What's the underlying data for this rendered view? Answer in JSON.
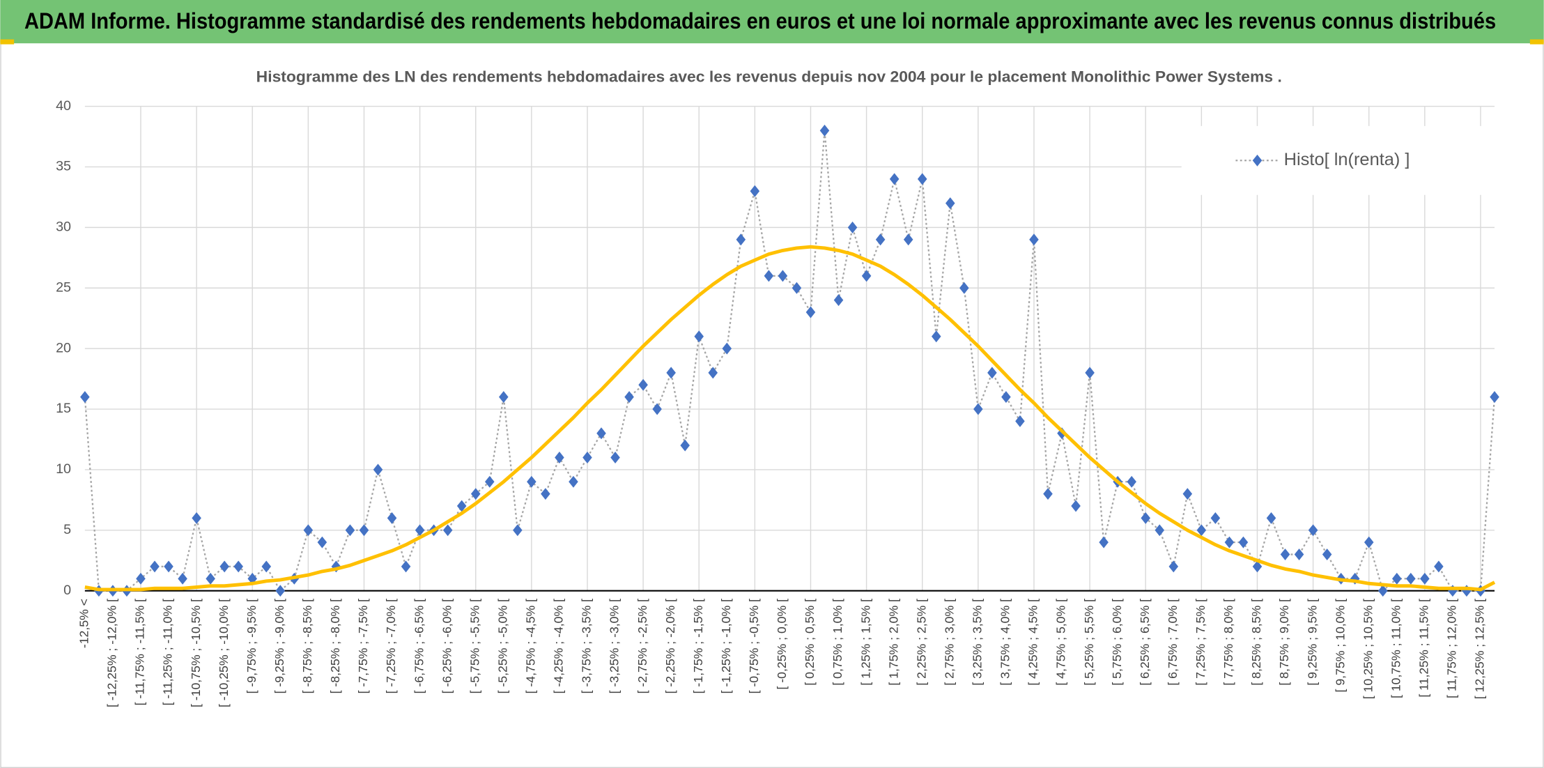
{
  "chart_data": {
    "type": "line",
    "title": "ADAM Informe. Histogramme standardisé des rendements hebdomadaires en euros et une loi normale approximante avec les revenus connus distribués",
    "subtitle": "Histogramme des LN des rendements hebdomadaires avec les revenus depuis nov 2004 pour le placement Monolithic Power Systems .",
    "categories": [
      "-12,5% <",
      null,
      "[ -12,25% ; -12,0% [",
      null,
      "[ -11,75% ; -11,5% [",
      null,
      "[ -11,25% ; -11,0% [",
      null,
      "[ -10,75% ; -10,5% [",
      null,
      "[ -10,25% ; -10,0% [",
      null,
      "[ -9,75% ; -9,5% [",
      null,
      "[ -9,25% ; -9,0% [",
      null,
      "[ -8,75% ; -8,5% [",
      null,
      "[ -8,25% ; -8,0% [",
      null,
      "[ -7,75% ; -7,5% [",
      null,
      "[ -7,25% ; -7,0% [",
      null,
      "[ -6,75% ; -6,5% [",
      null,
      "[ -6,25% ; -6,0% [",
      null,
      "[ -5,75% ; -5,5% [",
      null,
      "[ -5,25% ; -5,0% [",
      null,
      "[ -4,75% ; -4,5% [",
      null,
      "[ -4,25% ; -4,0% [",
      null,
      "[ -3,75% ; -3,5% [",
      null,
      "[ -3,25% ; -3,0% [",
      null,
      "[ -2,75% ; -2,5% [",
      null,
      "[ -2,25% ; -2,0% [",
      null,
      "[ -1,75% ; -1,5% [",
      null,
      "[ -1,25% ; -1,0% [",
      null,
      "[ -0,75% ; -0,5% [",
      null,
      "[ -0,25% ; 0,0% [",
      null,
      "[ 0,25% ; 0,5% [",
      null,
      "[ 0,75% ; 1,0% [",
      null,
      "[ 1,25% ; 1,5% [",
      null,
      "[ 1,75% ; 2,0% [",
      null,
      "[ 2,25% ; 2,5% [",
      null,
      "[ 2,75% ; 3,0% [",
      null,
      "[ 3,25% ; 3,5% [",
      null,
      "[ 3,75% ; 4,0% [",
      null,
      "[ 4,25% ; 4,5% [",
      null,
      "[ 4,75% ; 5,0% [",
      null,
      "[ 5,25% ; 5,5% [",
      null,
      "[ 5,75% ; 6,0% [",
      null,
      "[ 6,25% ; 6,5% [",
      null,
      "[ 6,75% ; 7,0% [",
      null,
      "[ 7,25% ; 7,5% [",
      null,
      "[ 7,75% ; 8,0% [",
      null,
      "[ 8,25% ; 8,5% [",
      null,
      "[ 8,75% ; 9,0% [",
      null,
      "[ 9,25% ; 9,5% [",
      null,
      "[ 9,75% ; 10,0% [",
      null,
      "[ 10,25% ; 10,5% [",
      null,
      "[ 10,75% ; 11,0% [",
      null,
      "[ 11,25% ; 11,5% [",
      null,
      "[ 11,75% ; 12,0% [",
      null,
      "[ 12,25% ; 12,5% [",
      null
    ],
    "series": [
      {
        "name": "Histo[ ln(renta) ]",
        "color": "#4472c4",
        "line_color": "#a5a5a5",
        "values": [
          16,
          0,
          0,
          0,
          1,
          2,
          2,
          1,
          6,
          1,
          2,
          2,
          1,
          2,
          0,
          1,
          5,
          4,
          2,
          5,
          5,
          10,
          6,
          2,
          5,
          5,
          5,
          7,
          8,
          9,
          16,
          5,
          9,
          8,
          11,
          9,
          11,
          13,
          11,
          16,
          17,
          15,
          18,
          12,
          21,
          18,
          20,
          29,
          33,
          26,
          26,
          25,
          23,
          38,
          24,
          30,
          26,
          29,
          34,
          29,
          34,
          21,
          32,
          25,
          15,
          18,
          16,
          14,
          29,
          8,
          13,
          7,
          18,
          4,
          9,
          9,
          6,
          5,
          2,
          8,
          5,
          6,
          4,
          4,
          2,
          6,
          3,
          3,
          5,
          3,
          1,
          1,
          4,
          0,
          1,
          1,
          1,
          2,
          0,
          0,
          0,
          16
        ]
      },
      {
        "color": "#ffc000",
        "values": [
          0.3,
          0.1,
          0.1,
          0.1,
          0.1,
          0.2,
          0.2,
          0.2,
          0.3,
          0.4,
          0.4,
          0.5,
          0.6,
          0.8,
          0.9,
          1.1,
          1.3,
          1.6,
          1.8,
          2.1,
          2.5,
          2.9,
          3.3,
          3.8,
          4.4,
          5.0,
          5.7,
          6.4,
          7.2,
          8.1,
          9.0,
          10.0,
          11.0,
          12.1,
          13.2,
          14.3,
          15.5,
          16.6,
          17.8,
          19.0,
          20.2,
          21.3,
          22.4,
          23.4,
          24.4,
          25.3,
          26.1,
          26.8,
          27.3,
          27.8,
          28.1,
          28.3,
          28.4,
          28.3,
          28.1,
          27.8,
          27.3,
          26.8,
          26.1,
          25.3,
          24.4,
          23.4,
          22.4,
          21.3,
          20.2,
          19.0,
          17.8,
          16.6,
          15.5,
          14.3,
          13.2,
          12.1,
          11.0,
          10.0,
          9.0,
          8.1,
          7.2,
          6.4,
          5.7,
          5.0,
          4.4,
          3.8,
          3.3,
          2.9,
          2.5,
          2.1,
          1.8,
          1.6,
          1.3,
          1.1,
          0.9,
          0.8,
          0.6,
          0.5,
          0.4,
          0.4,
          0.3,
          0.2,
          0.2,
          0.2,
          0.1,
          0.7
        ]
      }
    ],
    "ylim": [
      0,
      40
    ],
    "yticks": [
      0,
      5,
      10,
      15,
      20,
      25,
      30,
      35,
      40
    ],
    "grid": true,
    "legend": "top-right"
  }
}
